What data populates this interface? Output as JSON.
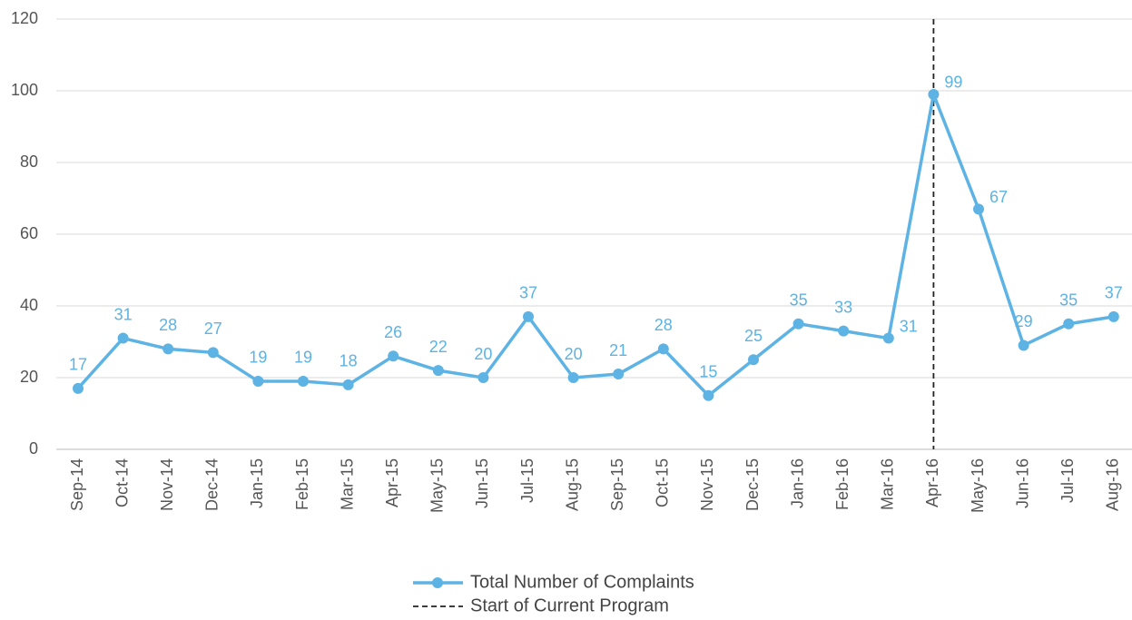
{
  "chart_data": {
    "type": "line",
    "categories": [
      "Sep-14",
      "Oct-14",
      "Nov-14",
      "Dec-14",
      "Jan-15",
      "Feb-15",
      "Mar-15",
      "Apr-15",
      "May-15",
      "Jun-15",
      "Jul-15",
      "Aug-15",
      "Sep-15",
      "Oct-15",
      "Nov-15",
      "Dec-15",
      "Jan-16",
      "Feb-16",
      "Mar-16",
      "Apr-16",
      "May-16",
      "Jun-16",
      "Jul-16",
      "Aug-16"
    ],
    "series": [
      {
        "name": "Total Number of Complaints",
        "color": "#5db3e4",
        "values": [
          17,
          31,
          28,
          27,
          19,
          19,
          18,
          26,
          22,
          20,
          37,
          20,
          21,
          28,
          15,
          25,
          35,
          33,
          31,
          99,
          67,
          29,
          35,
          37
        ]
      }
    ],
    "vline": {
      "name": "Start of Current Program",
      "x": "Apr-16",
      "color": "#222222"
    },
    "ylim": [
      0,
      120
    ],
    "yticks": [
      0,
      20,
      40,
      60,
      80,
      100,
      120
    ],
    "grid": true,
    "data_labels": true
  }
}
